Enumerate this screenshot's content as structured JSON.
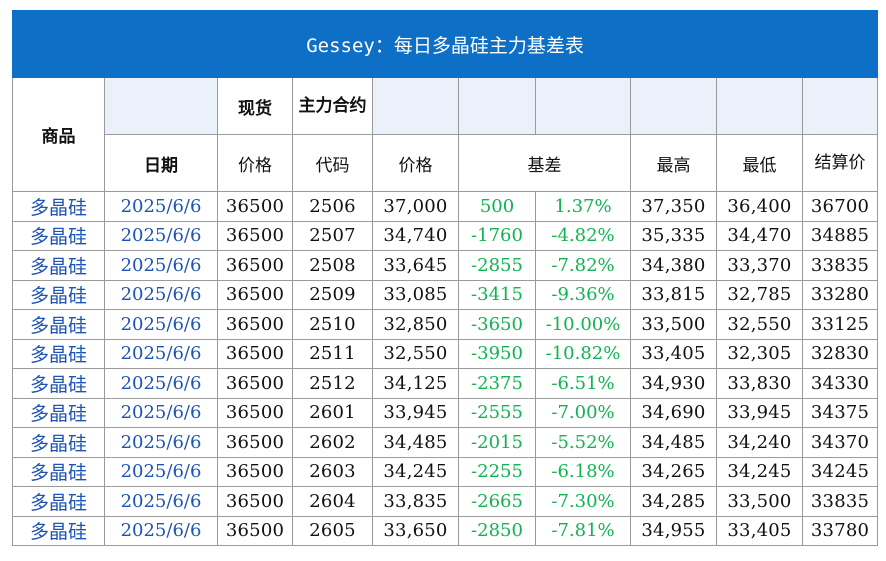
{
  "title": "Gessey：每日多晶硅主力基差表",
  "headers": {
    "product": "商品",
    "spot": "现货",
    "main_contract": "主力合约",
    "date": "日期",
    "spot_price": "价格",
    "code": "代码",
    "price": "价格",
    "basis": "基差",
    "high": "最高",
    "low": "最低",
    "settle": "结算价"
  },
  "rows": [
    {
      "product": "多晶硅",
      "date": "2025/6/6",
      "spot_price": "36500",
      "code": "2506",
      "price": "37,000",
      "basis": "500",
      "basis_pct": "1.37%",
      "high": "37,350",
      "low": "36,400",
      "settle": "36700"
    },
    {
      "product": "多晶硅",
      "date": "2025/6/6",
      "spot_price": "36500",
      "code": "2507",
      "price": "34,740",
      "basis": "-1760",
      "basis_pct": "-4.82%",
      "high": "35,335",
      "low": "34,470",
      "settle": "34885"
    },
    {
      "product": "多晶硅",
      "date": "2025/6/6",
      "spot_price": "36500",
      "code": "2508",
      "price": "33,645",
      "basis": "-2855",
      "basis_pct": "-7.82%",
      "high": "34,380",
      "low": "33,370",
      "settle": "33835"
    },
    {
      "product": "多晶硅",
      "date": "2025/6/6",
      "spot_price": "36500",
      "code": "2509",
      "price": "33,085",
      "basis": "-3415",
      "basis_pct": "-9.36%",
      "high": "33,815",
      "low": "32,785",
      "settle": "33280"
    },
    {
      "product": "多晶硅",
      "date": "2025/6/6",
      "spot_price": "36500",
      "code": "2510",
      "price": "32,850",
      "basis": "-3650",
      "basis_pct": "-10.00%",
      "high": "33,500",
      "low": "32,550",
      "settle": "33125"
    },
    {
      "product": "多晶硅",
      "date": "2025/6/6",
      "spot_price": "36500",
      "code": "2511",
      "price": "32,550",
      "basis": "-3950",
      "basis_pct": "-10.82%",
      "high": "33,405",
      "low": "32,305",
      "settle": "32830"
    },
    {
      "product": "多晶硅",
      "date": "2025/6/6",
      "spot_price": "36500",
      "code": "2512",
      "price": "34,125",
      "basis": "-2375",
      "basis_pct": "-6.51%",
      "high": "34,930",
      "low": "33,830",
      "settle": "34330"
    },
    {
      "product": "多晶硅",
      "date": "2025/6/6",
      "spot_price": "36500",
      "code": "2601",
      "price": "33,945",
      "basis": "-2555",
      "basis_pct": "-7.00%",
      "high": "34,690",
      "low": "33,945",
      "settle": "34375"
    },
    {
      "product": "多晶硅",
      "date": "2025/6/6",
      "spot_price": "36500",
      "code": "2602",
      "price": "34,485",
      "basis": "-2015",
      "basis_pct": "-5.52%",
      "high": "34,485",
      "low": "34,240",
      "settle": "34370"
    },
    {
      "product": "多晶硅",
      "date": "2025/6/6",
      "spot_price": "36500",
      "code": "2603",
      "price": "34,245",
      "basis": "-2255",
      "basis_pct": "-6.18%",
      "high": "34,265",
      "low": "34,245",
      "settle": "34245"
    },
    {
      "product": "多晶硅",
      "date": "2025/6/6",
      "spot_price": "36500",
      "code": "2604",
      "price": "33,835",
      "basis": "-2665",
      "basis_pct": "-7.30%",
      "high": "34,285",
      "low": "33,500",
      "settle": "33835"
    },
    {
      "product": "多晶硅",
      "date": "2025/6/6",
      "spot_price": "36500",
      "code": "2605",
      "price": "33,650",
      "basis": "-2850",
      "basis_pct": "-7.81%",
      "high": "34,955",
      "low": "33,405",
      "settle": "33780"
    }
  ]
}
